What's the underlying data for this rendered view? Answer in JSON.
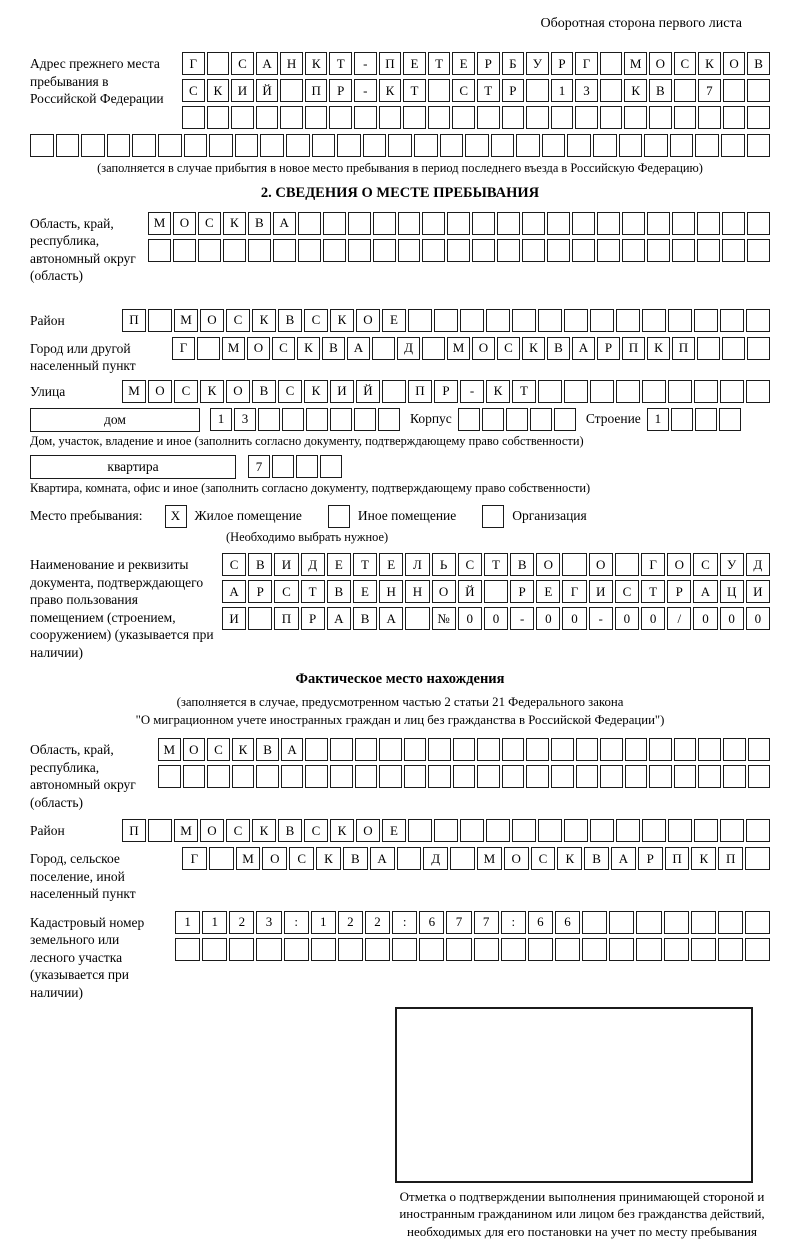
{
  "header": {
    "top_right_note": "Оборотная сторона первого листа"
  },
  "prev_address": {
    "label": "Адрес прежнего места пребывания в Российской Федерации",
    "rows": [
      {
        "text": "Г САНКТ-ПЕТЕРБУРГ МОСКОВ",
        "len": 24
      },
      {
        "text": "СКИЙ ПР-КТ СТР 13 КВ 7",
        "len": 24
      },
      {
        "text": "",
        "len": 24
      }
    ],
    "overflow_row": {
      "text": "",
      "len": 29
    },
    "caption": "(заполняется в случае прибытия в новое место пребывания в период последнего въезда в Российскую Федерацию)"
  },
  "section2": {
    "title": "2. СВЕДЕНИЯ О МЕСТЕ ПРЕБЫВАНИЯ",
    "region": {
      "label": "Область, край, республика, автономный округ (область)",
      "rows": [
        {
          "text": "МОСКВА",
          "len": 25
        },
        {
          "text": "",
          "len": 25
        }
      ]
    },
    "district": {
      "label": "Район",
      "row": {
        "text": "П МОСКВСКОЕ",
        "len": 25
      }
    },
    "city": {
      "label": "Город или другой населенный пункт",
      "row": {
        "text": "Г МОСКВА Д МОСКВАРПКП",
        "len": 24
      }
    },
    "street": {
      "label": "Улица",
      "row": {
        "text": "МОСКОВСКИЙ ПР-КТ",
        "len": 25
      }
    },
    "house": {
      "box_label": "дом",
      "cells": {
        "text": "13",
        "len": 8
      },
      "korpus_label": "Корпус",
      "korpus_cells": {
        "text": "",
        "len": 5
      },
      "stroenie_label": "Строение",
      "stroenie_cells": {
        "text": "1",
        "len": 4
      },
      "caption": "Дом, участок, владение и иное (заполнить согласно документу, подтверждающему право собственности)"
    },
    "apartment": {
      "box_label": "квартира",
      "cells": {
        "text": "7",
        "len": 4
      },
      "caption": "Квартира, комната, офис и иное (заполнить согласно документу, подтверждающему право собственности)"
    },
    "stay_type": {
      "label": "Место пребывания:",
      "options": [
        {
          "label": "Жилое помещение",
          "checked": {
            "text": "X",
            "len": 1
          }
        },
        {
          "label": "Иное помещение",
          "checked": {
            "text": "",
            "len": 1
          }
        },
        {
          "label": "Организация",
          "checked": {
            "text": "",
            "len": 1
          }
        }
      ],
      "caption": "(Необходимо выбрать нужное)"
    },
    "document": {
      "label": "Наименование и реквизиты документа, подтверждающего право пользования помещением (строением, сооружением) (указывается при наличии)",
      "rows": [
        {
          "text": "СВИДЕТЕЛЬСТВО О ГОСУД",
          "len": 21
        },
        {
          "text": "АРСТВЕННОЙ РЕГИСТРАЦИ",
          "len": 21
        },
        {
          "text": "И ПРАВА №00-00-00/000",
          "len": 21
        }
      ]
    }
  },
  "actual_location": {
    "title": "Фактическое место нахождения",
    "caption_line1": "(заполняется в случае, предусмотренном частью 2 статьи 21 Федерального закона",
    "caption_line2": "\"О миграционном учете иностранных граждан и лиц без гражданства в Российской Федерации\")",
    "region": {
      "label": "Область, край, республика, автономный округ (область)",
      "rows": [
        {
          "text": "МОСКВА",
          "len": 25
        },
        {
          "text": "",
          "len": 25
        }
      ]
    },
    "district": {
      "label": "Район",
      "row": {
        "text": "П МОСКВСКОЕ",
        "len": 25
      }
    },
    "city": {
      "label": "Город, сельское поселение, иной населенный пункт",
      "row": {
        "text": "Г МОСКВА Д МОСКВАРПКП",
        "len": 22
      }
    },
    "cadastral": {
      "label": "Кадастровый номер земельного или лесного участка (указывается при наличии)",
      "rows": [
        {
          "text": "1123:122:677:66",
          "len": 22
        },
        {
          "text": "",
          "len": 22
        }
      ]
    },
    "stamp_note": "Отметка о подтверждении выполнения принимающей стороной и иностранным гражданином или лицом без гражданства действий, необходимых для его постановки на учет по месту пребывания"
  }
}
